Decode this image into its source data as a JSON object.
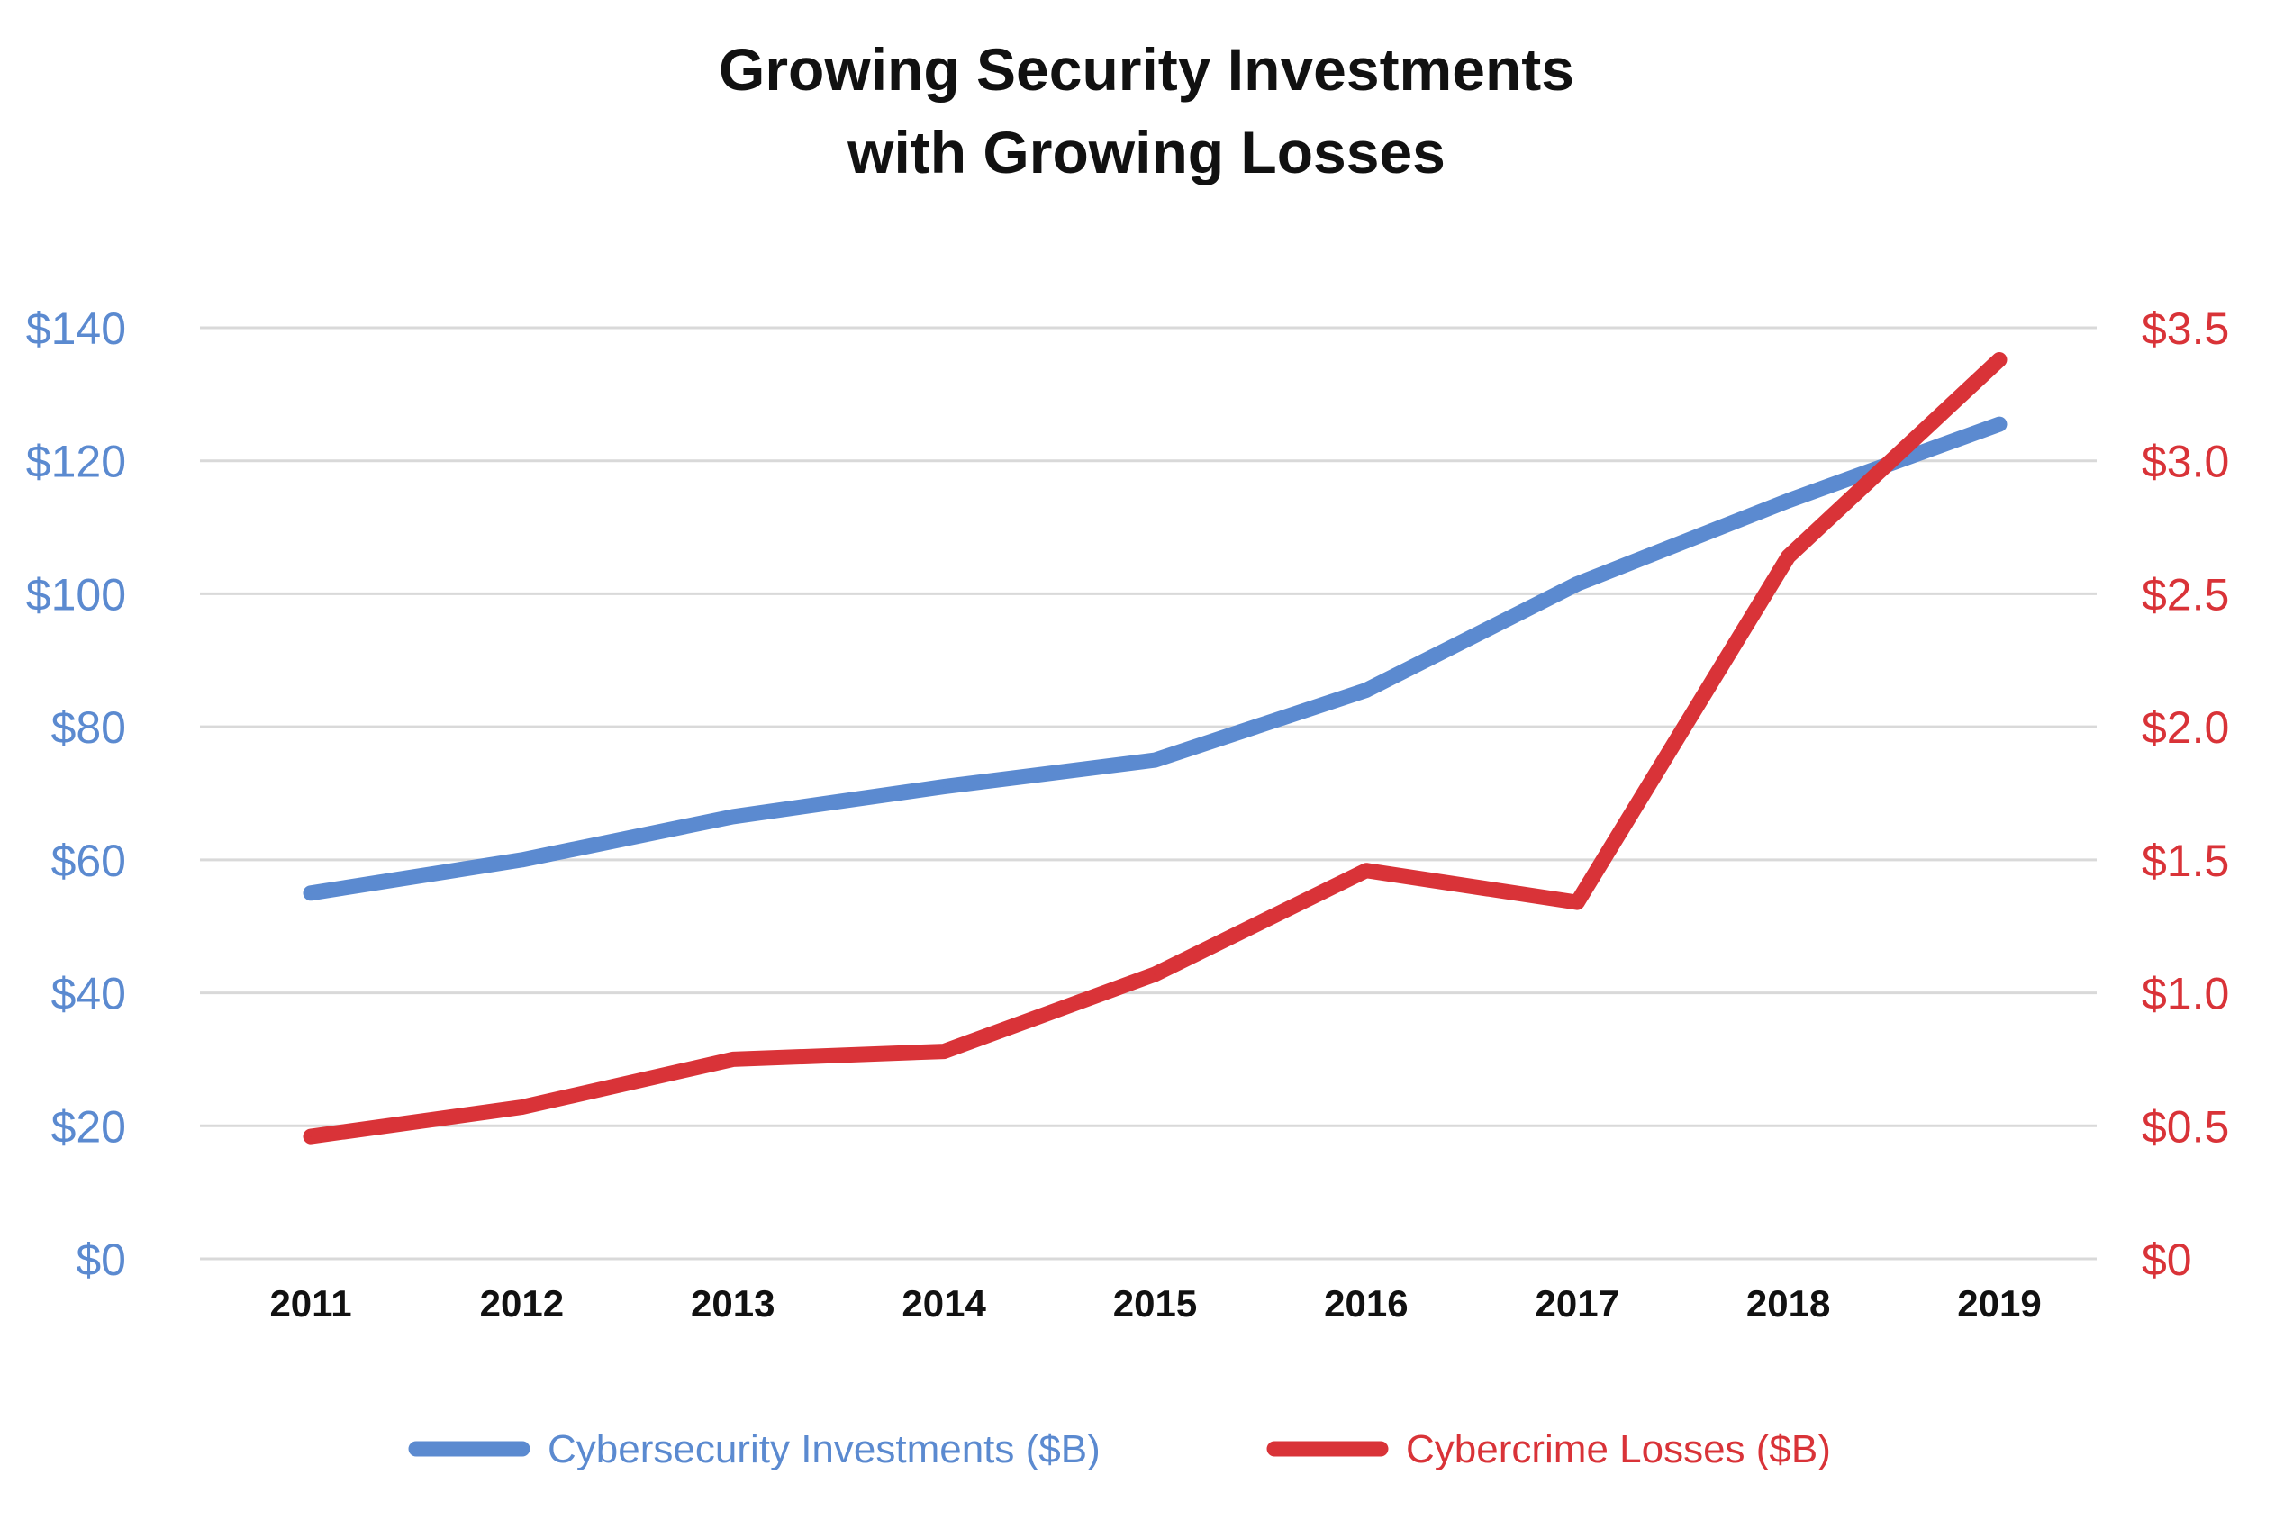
{
  "chart_data": {
    "type": "line",
    "title": [
      "Growing Security Investments",
      "with Growing Losses"
    ],
    "categories": [
      "2011",
      "2012",
      "2013",
      "2014",
      "2015",
      "2016",
      "2017",
      "2018",
      "2019"
    ],
    "left_axis": {
      "ylim": [
        0,
        140
      ],
      "ticks": [
        0,
        20,
        40,
        60,
        80,
        100,
        120,
        140
      ],
      "tick_labels": [
        "$0",
        "$20",
        "$40",
        "$60",
        "$80",
        "$100",
        "$120",
        "$140"
      ],
      "color": "#5b8ad0"
    },
    "right_axis": {
      "ylim": [
        0,
        3.5
      ],
      "ticks": [
        0,
        0.5,
        1.0,
        1.5,
        2.0,
        2.5,
        3.0,
        3.5
      ],
      "tick_labels": [
        "$0",
        "$0.5",
        "$1.0",
        "$1.5",
        "$2.0",
        "$2.5",
        "$3.0",
        "$3.5"
      ],
      "color": "#d93338"
    },
    "series": [
      {
        "name": "Cybersecurity Investments ($B)",
        "axis": "left",
        "color": "#5b8ad0",
        "values": [
          55,
          60,
          66.5,
          71,
          75,
          85.5,
          101.5,
          114,
          125.5
        ]
      },
      {
        "name": "Cybercrime Losses ($B)",
        "axis": "right",
        "color": "#d93338",
        "values": [
          0.46,
          0.57,
          0.75,
          0.78,
          1.07,
          1.46,
          1.34,
          2.64,
          3.38
        ]
      }
    ],
    "grid": true,
    "legend_position": "bottom-center"
  }
}
